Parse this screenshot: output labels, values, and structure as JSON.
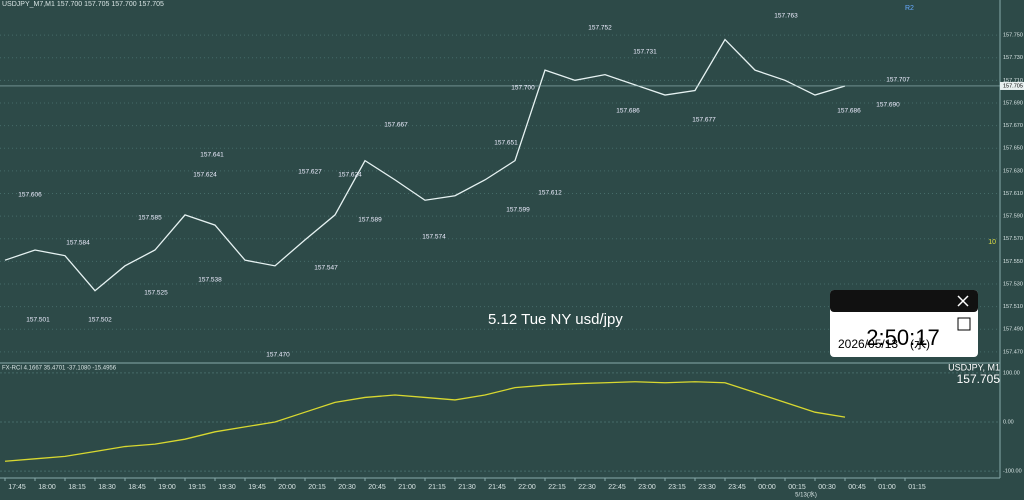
{
  "window": {
    "title": "USDJPY_M7,M1 157.700 157.705 157.700 157.705",
    "marker": "R2",
    "caption": "5.12 Tue NY usd/jpy",
    "side_label": "10"
  },
  "clock": {
    "time": "2:50:17",
    "date": "2026/05/13　(水)"
  },
  "chart_data": [
    {
      "type": "line",
      "categories": [
        "17:45",
        "18:00",
        "18:15",
        "18:30",
        "18:45",
        "19:00",
        "19:15",
        "19:30",
        "19:45",
        "20:00",
        "20:15",
        "20:30",
        "20:45",
        "21:00",
        "21:15",
        "21:30",
        "21:45",
        "22:00",
        "22:15",
        "22:30",
        "22:45",
        "23:00",
        "23:15",
        "23:30",
        "23:45",
        "00:00",
        "00:15",
        "00:30",
        "00:45",
        "01:00",
        "01:15"
      ],
      "date_label": "5/13(水)",
      "series": [
        {
          "name": "USDJPY, M1",
          "color": "#e6f2f2",
          "values": [
            157.551,
            157.56,
            157.555,
            157.524,
            157.546,
            157.56,
            157.591,
            157.582,
            157.551,
            157.546,
            157.569,
            157.591,
            157.639,
            157.622,
            157.604,
            157.608,
            157.622,
            157.639,
            157.719,
            157.71,
            157.715,
            157.706,
            157.697,
            157.701,
            157.746,
            157.719,
            157.71,
            157.697,
            157.705,
            null,
            null
          ]
        }
      ],
      "last_price": 157.705,
      "annotations": [
        "157.606",
        "157.584",
        "157.585",
        "157.501",
        "157.502",
        "157.525",
        "157.624",
        "157.641",
        "157.538",
        "157.627",
        "157.624",
        "157.589",
        "157.547",
        "157.470",
        "157.667",
        "157.574",
        "157.599",
        "157.651",
        "157.700",
        "157.612",
        "157.752",
        "157.731",
        "157.686",
        "157.677",
        "157.763",
        "157.686",
        "157.707",
        "157.690"
      ],
      "ylim": [
        157.461,
        157.781
      ],
      "yticks": [
        {
          "value": 157.47,
          "label": "157.470"
        },
        {
          "value": 157.49,
          "label": "157.490"
        },
        {
          "value": 157.51,
          "label": "157.510"
        },
        {
          "value": 157.53,
          "label": "157.530"
        },
        {
          "value": 157.55,
          "label": "157.550"
        },
        {
          "value": 157.57,
          "label": "157.570"
        },
        {
          "value": 157.59,
          "label": "157.590"
        },
        {
          "value": 157.61,
          "label": "157.610"
        },
        {
          "value": 157.63,
          "label": "157.630"
        },
        {
          "value": 157.65,
          "label": "157.650"
        },
        {
          "value": 157.67,
          "label": "157.670"
        },
        {
          "value": 157.69,
          "label": "157.690"
        },
        {
          "value": 157.71,
          "label": "157.710"
        },
        {
          "value": 157.73,
          "label": "157.730"
        },
        {
          "value": 157.75,
          "label": "157.750"
        }
      ]
    },
    {
      "type": "line",
      "title": "FX-RCI 4.1667 35.4701 -37.1080 -15.4956",
      "series": [
        {
          "color": "#d8d830",
          "values": [
            -80,
            -75,
            -70,
            -60,
            -50,
            -45,
            -35,
            -20,
            -10,
            0,
            20,
            40,
            50,
            55,
            50,
            45,
            55,
            70,
            75,
            78,
            80,
            82,
            80,
            82,
            80,
            60,
            40,
            20,
            10,
            null,
            null
          ]
        }
      ],
      "ylim": [
        -110,
        110
      ],
      "yticks": [
        {
          "value": 100,
          "label": "100.00"
        },
        {
          "value": 0,
          "label": "0.00"
        },
        {
          "value": -100,
          "label": "-100.00"
        }
      ]
    }
  ]
}
